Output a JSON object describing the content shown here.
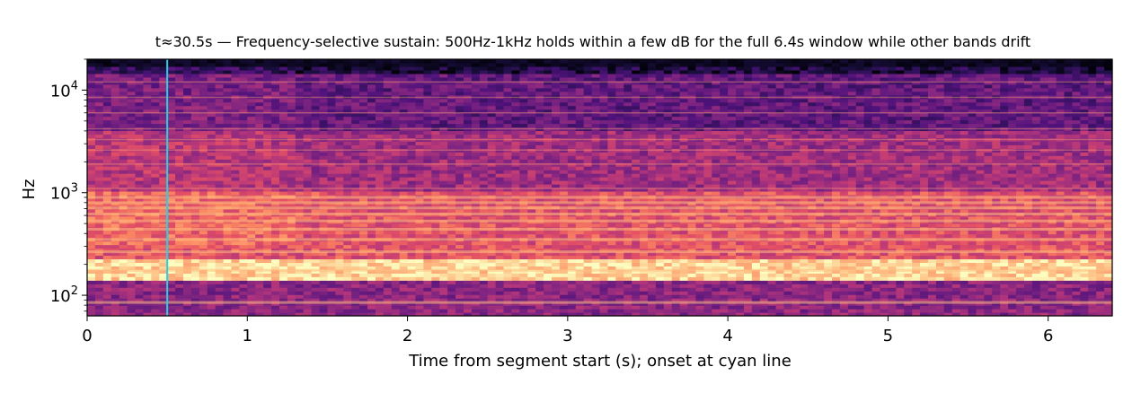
{
  "chart_data": {
    "type": "heatmap",
    "subtype": "spectrogram",
    "title": "t≈30.5s — Frequency-selective sustain: 500Hz-1kHz holds within a few dB for the full 6.4s window while other bands drift",
    "xlabel": "Time from segment start (s); onset at cyan line",
    "ylabel": "Hz",
    "x_scale": "linear",
    "y_scale": "log",
    "xlim": [
      0,
      6.4
    ],
    "ylim": [
      63,
      20000
    ],
    "x_ticks": [
      {
        "value": 0,
        "label": "0"
      },
      {
        "value": 1,
        "label": "1"
      },
      {
        "value": 2,
        "label": "2"
      },
      {
        "value": 3,
        "label": "3"
      },
      {
        "value": 4,
        "label": "4"
      },
      {
        "value": 5,
        "label": "5"
      },
      {
        "value": 6,
        "label": "6"
      }
    ],
    "y_ticks": [
      {
        "value": 100,
        "base": "10",
        "exp": "2"
      },
      {
        "value": 1000,
        "base": "10",
        "exp": "3"
      },
      {
        "value": 10000,
        "base": "10",
        "exp": "4"
      }
    ],
    "colormap": "magma",
    "onset_marker": {
      "time": 0.5,
      "color": "#22d3e6"
    },
    "harmonic_lines_hz": [
      85,
      175,
      265,
      350,
      440,
      530,
      620,
      710,
      800,
      900,
      1100,
      1900,
      2600,
      3300,
      4200,
      6000,
      8500,
      12000
    ],
    "energy_bands": [
      {
        "low_hz": 140,
        "high_hz": 230,
        "level": 0.92
      },
      {
        "low_hz": 230,
        "high_hz": 1000,
        "level": 0.62
      },
      {
        "low_hz": 1000,
        "high_hz": 4000,
        "level": 0.45
      },
      {
        "low_hz": 4000,
        "high_hz": 14000,
        "level": 0.3
      },
      {
        "low_hz": 14000,
        "high_hz": 20000,
        "level": 0.12
      },
      {
        "low_hz": 63,
        "high_hz": 140,
        "level": 0.4
      }
    ],
    "grid": false
  }
}
